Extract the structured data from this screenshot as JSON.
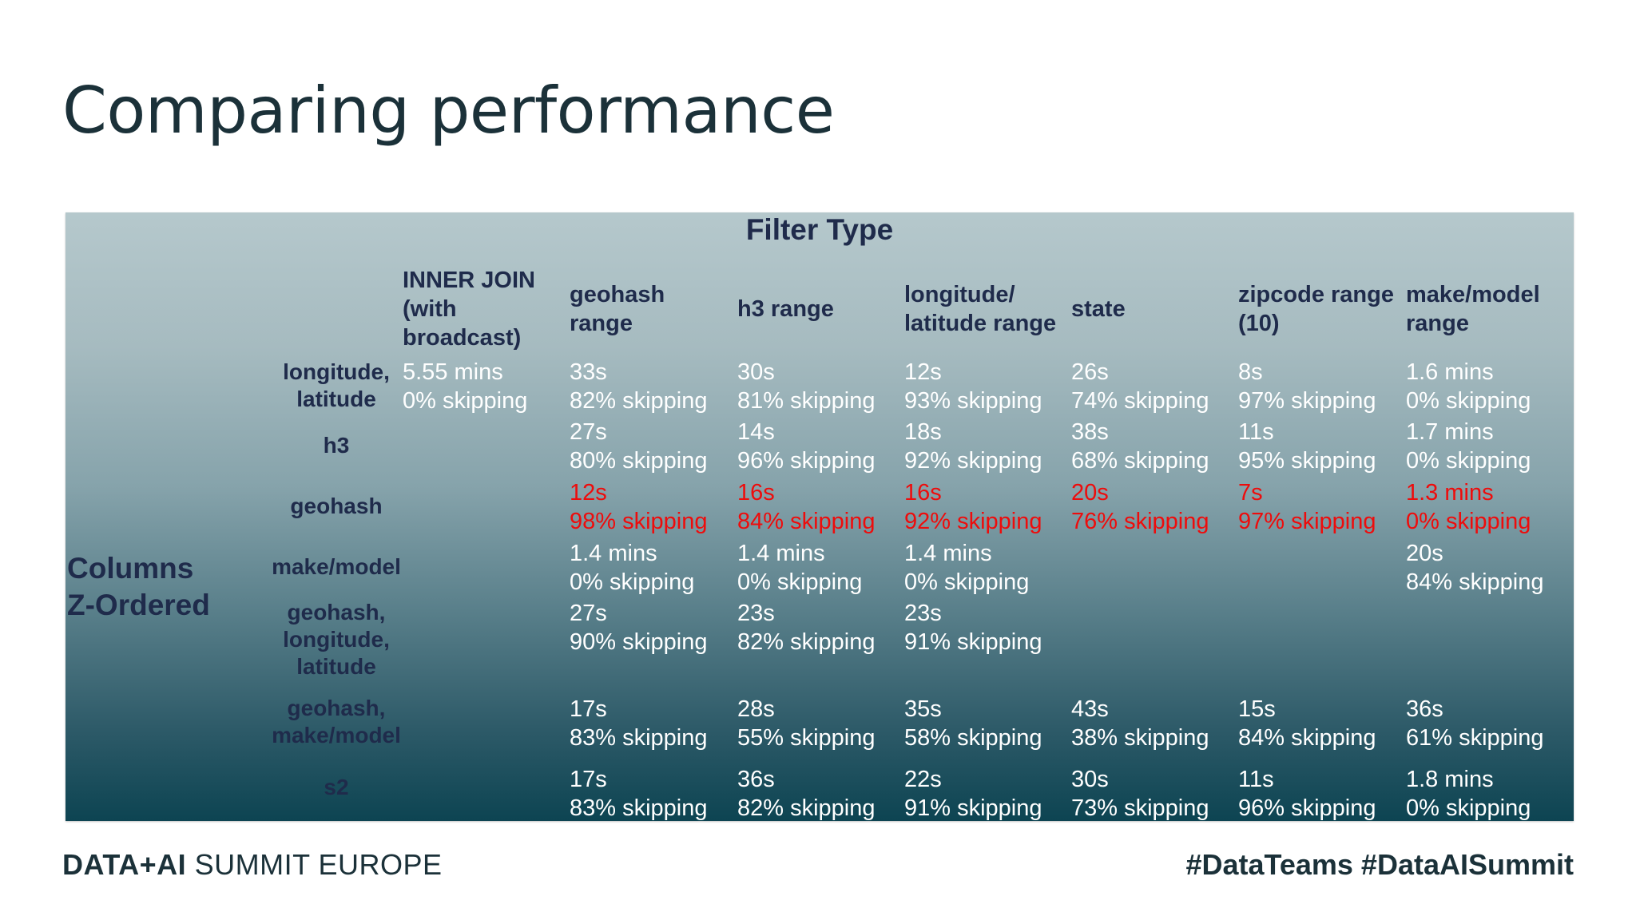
{
  "slide": {
    "title": "Comparing performance"
  },
  "table": {
    "filter_type_label": "Filter Type",
    "columns_label": "Columns\nZ-Ordered",
    "column_headers": [
      "INNER JOIN\n(with\nbroadcast)",
      "geohash\nrange",
      "h3 range",
      "longitude/\nlatitude range",
      "state",
      "zipcode range\n(10)",
      "make/model\nrange"
    ],
    "rows": [
      {
        "label": "longitude,\nlatitude",
        "highlight": false,
        "cells": [
          "5.55 mins\n0% skipping",
          "33s\n82% skipping",
          "30s\n81% skipping",
          "12s\n93% skipping",
          "26s\n74% skipping",
          "8s\n97% skipping",
          "1.6 mins\n0% skipping"
        ]
      },
      {
        "label": "h3",
        "highlight": false,
        "cells": [
          "",
          "27s\n80% skipping",
          "14s\n96% skipping",
          "18s\n92% skipping",
          "38s\n68% skipping",
          "11s\n95% skipping",
          "1.7 mins\n0% skipping"
        ]
      },
      {
        "label": "geohash",
        "highlight": true,
        "cells": [
          "",
          "12s\n98% skipping",
          "16s\n84% skipping",
          "16s\n92% skipping",
          "20s\n76% skipping",
          "7s\n97% skipping",
          "1.3 mins\n0% skipping"
        ]
      },
      {
        "label": "make/model",
        "highlight": false,
        "cells": [
          "",
          "1.4 mins\n0% skipping",
          "1.4 mins\n0% skipping",
          "1.4 mins\n0% skipping",
          "",
          "",
          "20s\n84% skipping"
        ]
      },
      {
        "label": "geohash,\nlongitude,\nlatitude",
        "highlight": false,
        "cells": [
          "",
          "27s\n90% skipping",
          "23s\n82% skipping",
          "23s\n91% skipping",
          "",
          "",
          ""
        ]
      },
      {
        "label": "geohash,\nmake/model",
        "highlight": false,
        "cells": [
          "",
          "17s\n83% skipping",
          "28s\n55% skipping",
          "35s\n58% skipping",
          "43s\n38% skipping",
          "15s\n84% skipping",
          "36s\n61% skipping"
        ]
      },
      {
        "label": "s2",
        "highlight": false,
        "cells": [
          "",
          "17s\n83% skipping",
          "36s\n82% skipping",
          "22s\n91% skipping",
          "30s\n73% skipping",
          "11s\n96% skipping",
          "1.8 mins\n0% skipping"
        ]
      }
    ],
    "colors": {
      "highlight": "#ee0c0c",
      "cell_text": "#ffffff",
      "label_text": "#1f2b4b"
    }
  },
  "footer": {
    "brand_strong": "DATA+AI",
    "brand_rest": " SUMMIT EUROPE",
    "hashtags": "#DataTeams  #DataAISummit"
  }
}
